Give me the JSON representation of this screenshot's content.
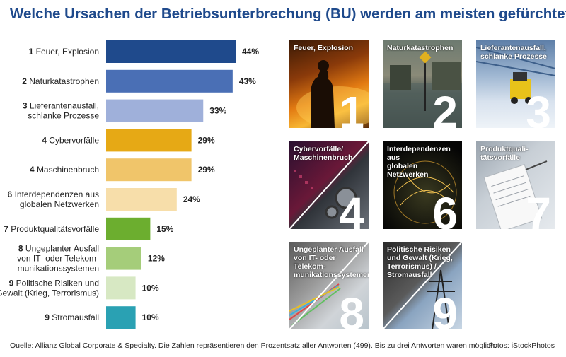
{
  "title": "Welche Ursachen der Betriebsunterbrechung (BU) werden am meisten gefürchtet?",
  "chart_data": {
    "type": "bar",
    "orientation": "horizontal",
    "title": "Welche Ursachen der Betriebsunterbrechung (BU) werden am meisten gefürchtet?",
    "unit": "%",
    "xlim": [
      0,
      44
    ],
    "grid": false,
    "bars": [
      {
        "rank": "1",
        "label_lines": [
          "Feuer, Explosion"
        ],
        "value": 44,
        "value_label": "44%",
        "color": "#1f4a8c"
      },
      {
        "rank": "2",
        "label_lines": [
          "Naturkatastrophen"
        ],
        "value": 43,
        "value_label": "43%",
        "color": "#4a6fb5"
      },
      {
        "rank": "3",
        "label_lines": [
          "Lieferantenausfall,",
          "schlanke Prozesse"
        ],
        "value": 33,
        "value_label": "33%",
        "color": "#9fb0da"
      },
      {
        "rank": "4",
        "label_lines": [
          "Cybervorfälle"
        ],
        "value": 29,
        "value_label": "29%",
        "color": "#e6a915"
      },
      {
        "rank": "4",
        "label_lines": [
          "Maschinenbruch"
        ],
        "value": 29,
        "value_label": "29%",
        "color": "#f0c56a"
      },
      {
        "rank": "6",
        "label_lines": [
          "Interdependenzen aus",
          "globalen Netzwerken"
        ],
        "value": 24,
        "value_label": "24%",
        "color": "#f7deaa"
      },
      {
        "rank": "7",
        "label_lines": [
          "Produktqualitätsvorfälle"
        ],
        "value": 15,
        "value_label": "15%",
        "color": "#6cae2f"
      },
      {
        "rank": "8",
        "label_lines": [
          "Ungeplanter Ausfall",
          "von IT- oder Telekom-",
          "munikationssystemen"
        ],
        "value": 12,
        "value_label": "12%",
        "color": "#a5cd7a"
      },
      {
        "rank": "9",
        "label_lines": [
          "Politische Risiken und",
          "Gewalt (Krieg, Terrorismus)"
        ],
        "value": 10,
        "value_label": "10%",
        "color": "#d7e8c3"
      },
      {
        "rank": "9",
        "label_lines": [
          "Stromausfall"
        ],
        "value": 10,
        "value_label": "10%",
        "color": "#2aa1b3"
      }
    ]
  },
  "tiles": [
    {
      "caption": "Feuer, Explosion",
      "number": "1",
      "diagonal": false,
      "art": "fire"
    },
    {
      "caption": "Naturkatastrophen",
      "number": "2",
      "diagonal": false,
      "art": "flood"
    },
    {
      "caption": "Lieferantenausfall,\nschlanke Prozesse",
      "number": "3",
      "diagonal": false,
      "art": "warehouse"
    },
    {
      "caption": "Cybervorfälle/\nMaschinenbruch",
      "number": "4",
      "diagonal": true,
      "art": "cyber"
    },
    {
      "caption": "Interdependenzen aus\nglobalen Netzwerken",
      "number": "6",
      "diagonal": false,
      "art": "globe"
    },
    {
      "caption": "Produktquali-\ntätsvorfälle",
      "number": "7",
      "diagonal": false,
      "art": "clipboard"
    },
    {
      "caption": "Ungeplanter Ausfall\nvon IT- oder Telekom-\nmunikationssystemen",
      "number": "8",
      "diagonal": true,
      "art": "fiber"
    },
    {
      "caption": "Politische Risiken\nund Gewalt (Krieg,\nTerrorismus) /\nStromausfall",
      "number": "9",
      "diagonal": true,
      "art": "pylon"
    }
  ],
  "footer": {
    "source": "Quelle: Allianz Global Corporate & Specialty. Die Zahlen repräsentieren den Prozentsatz aller Antworten (499). Bis zu drei Antworten waren möglich.",
    "photos": "Fotos: iStockPhotos"
  }
}
